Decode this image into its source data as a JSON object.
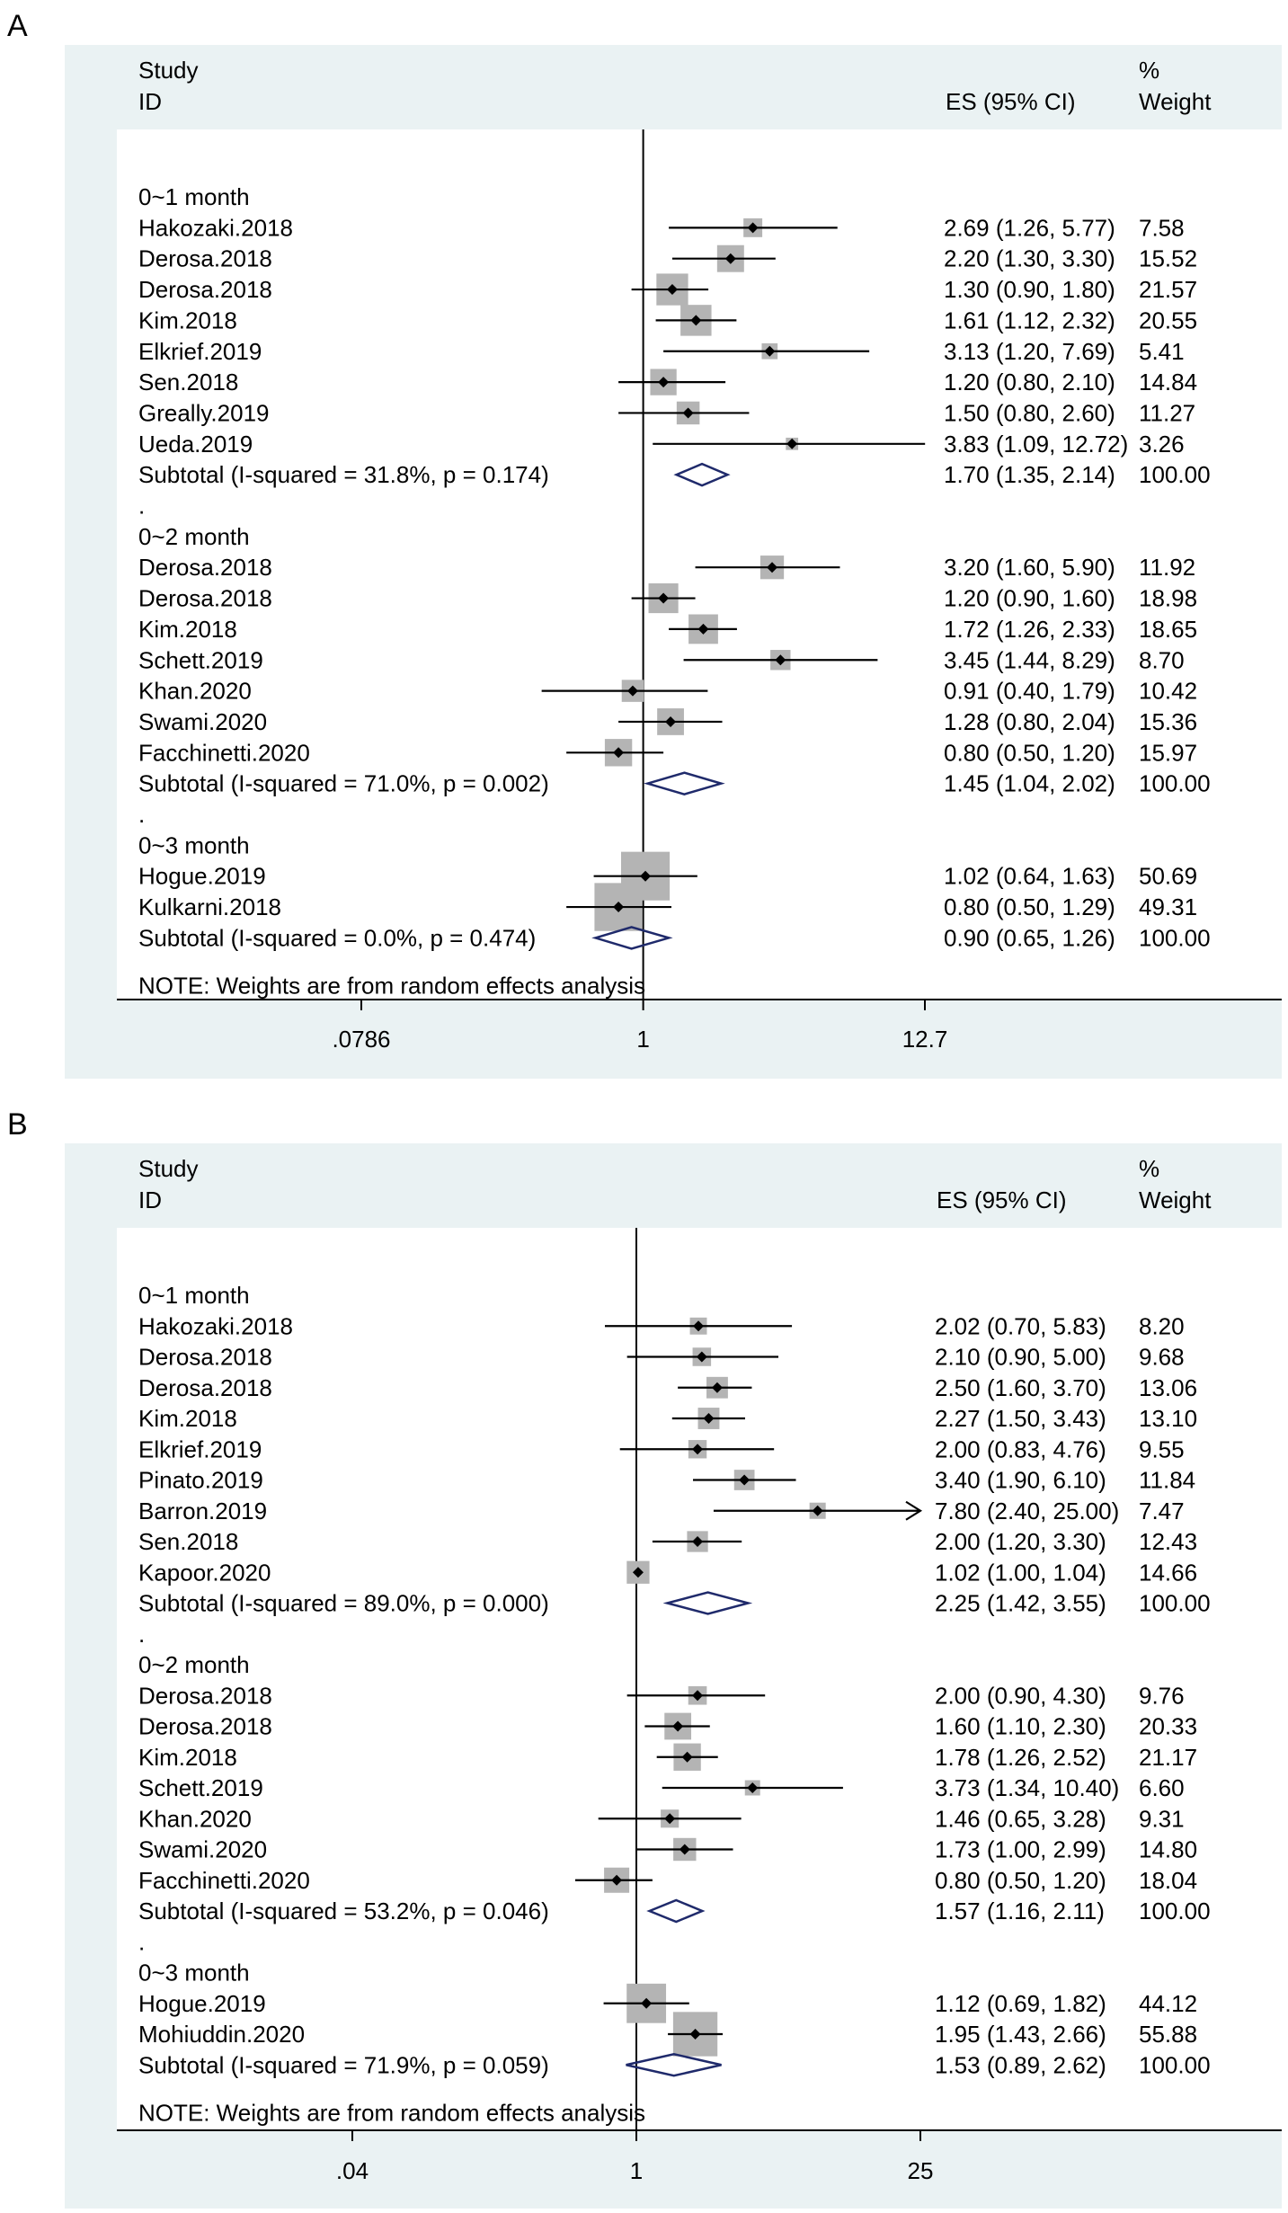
{
  "panels": [
    {
      "letter": "A",
      "header": {
        "study": "Study",
        "id": "ID",
        "es": "ES (95% CI)",
        "pct": "%",
        "weight": "Weight"
      },
      "note": "NOTE: Weights are from random effects analysis",
      "axis_ticks": [
        {
          "label": ".0786",
          "value": 0.0786
        },
        {
          "label": "1",
          "value": 1
        },
        {
          "label": "12.7",
          "value": 12.7
        }
      ]
    },
    {
      "letter": "B",
      "header": {
        "study": "Study",
        "id": "ID",
        "es": "ES (95% CI)",
        "pct": "%",
        "weight": "Weight"
      },
      "note": "NOTE: Weights are from random effects analysis",
      "axis_ticks": [
        {
          "label": ".04",
          "value": 0.04
        },
        {
          "label": "1",
          "value": 1
        },
        {
          "label": "25",
          "value": 25
        }
      ]
    }
  ],
  "chart_data": [
    {
      "type": "forest",
      "xscale": "log",
      "xlim": [
        0.0786,
        12.7
      ],
      "reference_line": 1,
      "rows": [
        {
          "kind": "group",
          "label": "0~1 month"
        },
        {
          "kind": "study",
          "label": "Hakozaki.2018",
          "es": 2.69,
          "lo": 1.26,
          "hi": 5.77,
          "es_text": "2.69 (1.26, 5.77)",
          "weight": 7.58,
          "weight_text": "7.58"
        },
        {
          "kind": "study",
          "label": "Derosa.2018",
          "es": 2.2,
          "lo": 1.3,
          "hi": 3.3,
          "es_text": "2.20 (1.30, 3.30)",
          "weight": 15.52,
          "weight_text": "15.52"
        },
        {
          "kind": "study",
          "label": "Derosa.2018",
          "es": 1.3,
          "lo": 0.9,
          "hi": 1.8,
          "es_text": "1.30 (0.90, 1.80)",
          "weight": 21.57,
          "weight_text": "21.57"
        },
        {
          "kind": "study",
          "label": "Kim.2018",
          "es": 1.61,
          "lo": 1.12,
          "hi": 2.32,
          "es_text": "1.61 (1.12, 2.32)",
          "weight": 20.55,
          "weight_text": "20.55"
        },
        {
          "kind": "study",
          "label": "Elkrief.2019",
          "es": 3.13,
          "lo": 1.2,
          "hi": 7.69,
          "es_text": "3.13 (1.20, 7.69)",
          "weight": 5.41,
          "weight_text": "5.41"
        },
        {
          "kind": "study",
          "label": "Sen.2018",
          "es": 1.2,
          "lo": 0.8,
          "hi": 2.1,
          "es_text": "1.20 (0.80, 2.10)",
          "weight": 14.84,
          "weight_text": "14.84"
        },
        {
          "kind": "study",
          "label": "Greally.2019",
          "es": 1.5,
          "lo": 0.8,
          "hi": 2.6,
          "es_text": "1.50 (0.80, 2.60)",
          "weight": 11.27,
          "weight_text": "11.27"
        },
        {
          "kind": "study",
          "label": "Ueda.2019",
          "es": 3.83,
          "lo": 1.09,
          "hi": 12.72,
          "es_text": "3.83 (1.09, 12.72)",
          "weight": 3.26,
          "weight_text": "3.26"
        },
        {
          "kind": "subtotal",
          "label": "Subtotal  (I-squared = 31.8%, p = 0.174)",
          "es": 1.7,
          "lo": 1.35,
          "hi": 2.14,
          "es_text": "1.70 (1.35, 2.14)",
          "weight_text": "100.00"
        },
        {
          "kind": "dot",
          "label": "."
        },
        {
          "kind": "group",
          "label": "0~2 month"
        },
        {
          "kind": "study",
          "label": "Derosa.2018",
          "es": 3.2,
          "lo": 1.6,
          "hi": 5.9,
          "es_text": "3.20 (1.60, 5.90)",
          "weight": 11.92,
          "weight_text": "11.92"
        },
        {
          "kind": "study",
          "label": "Derosa.2018",
          "es": 1.2,
          "lo": 0.9,
          "hi": 1.6,
          "es_text": "1.20 (0.90, 1.60)",
          "weight": 18.98,
          "weight_text": "18.98"
        },
        {
          "kind": "study",
          "label": "Kim.2018",
          "es": 1.72,
          "lo": 1.26,
          "hi": 2.33,
          "es_text": "1.72 (1.26, 2.33)",
          "weight": 18.65,
          "weight_text": "18.65"
        },
        {
          "kind": "study",
          "label": "Schett.2019",
          "es": 3.45,
          "lo": 1.44,
          "hi": 8.29,
          "es_text": "3.45 (1.44, 8.29)",
          "weight": 8.7,
          "weight_text": "8.70"
        },
        {
          "kind": "study",
          "label": "Khan.2020",
          "es": 0.91,
          "lo": 0.4,
          "hi": 1.79,
          "es_text": "0.91 (0.40, 1.79)",
          "weight": 10.42,
          "weight_text": "10.42"
        },
        {
          "kind": "study",
          "label": "Swami.2020",
          "es": 1.28,
          "lo": 0.8,
          "hi": 2.04,
          "es_text": "1.28 (0.80, 2.04)",
          "weight": 15.36,
          "weight_text": "15.36"
        },
        {
          "kind": "study",
          "label": "Facchinetti.2020",
          "es": 0.8,
          "lo": 0.5,
          "hi": 1.2,
          "es_text": "0.80 (0.50, 1.20)",
          "weight": 15.97,
          "weight_text": "15.97"
        },
        {
          "kind": "subtotal",
          "label": "Subtotal  (I-squared = 71.0%, p = 0.002)",
          "es": 1.45,
          "lo": 1.04,
          "hi": 2.02,
          "es_text": "1.45 (1.04, 2.02)",
          "weight_text": "100.00"
        },
        {
          "kind": "dot",
          "label": "."
        },
        {
          "kind": "group",
          "label": "0~3 month"
        },
        {
          "kind": "study",
          "label": "Hogue.2019",
          "es": 1.02,
          "lo": 0.64,
          "hi": 1.63,
          "es_text": "1.02 (0.64, 1.63)",
          "weight": 50.69,
          "weight_text": "50.69"
        },
        {
          "kind": "study",
          "label": "Kulkarni.2018",
          "es": 0.8,
          "lo": 0.5,
          "hi": 1.29,
          "es_text": "0.80 (0.50, 1.29)",
          "weight": 49.31,
          "weight_text": "49.31"
        },
        {
          "kind": "subtotal",
          "label": "Subtotal  (I-squared = 0.0%, p = 0.474)",
          "es": 0.9,
          "lo": 0.65,
          "hi": 1.26,
          "es_text": "0.90 (0.65, 1.26)",
          "weight_text": "100.00"
        }
      ]
    },
    {
      "type": "forest",
      "xscale": "log",
      "xlim": [
        0.04,
        25
      ],
      "reference_line": 1,
      "rows": [
        {
          "kind": "group",
          "label": "0~1 month"
        },
        {
          "kind": "study",
          "label": "Hakozaki.2018",
          "es": 2.02,
          "lo": 0.7,
          "hi": 5.83,
          "es_text": "2.02 (0.70, 5.83)",
          "weight": 8.2,
          "weight_text": "8.20"
        },
        {
          "kind": "study",
          "label": "Derosa.2018",
          "es": 2.1,
          "lo": 0.9,
          "hi": 5.0,
          "es_text": "2.10 (0.90, 5.00)",
          "weight": 9.68,
          "weight_text": "9.68"
        },
        {
          "kind": "study",
          "label": "Derosa.2018",
          "es": 2.5,
          "lo": 1.6,
          "hi": 3.7,
          "es_text": "2.50 (1.60, 3.70)",
          "weight": 13.06,
          "weight_text": "13.06"
        },
        {
          "kind": "study",
          "label": "Kim.2018",
          "es": 2.27,
          "lo": 1.5,
          "hi": 3.43,
          "es_text": "2.27 (1.50, 3.43)",
          "weight": 13.1,
          "weight_text": "13.10"
        },
        {
          "kind": "study",
          "label": "Elkrief.2019",
          "es": 2.0,
          "lo": 0.83,
          "hi": 4.76,
          "es_text": "2.00 (0.83, 4.76)",
          "weight": 9.55,
          "weight_text": "9.55"
        },
        {
          "kind": "study",
          "label": "Pinato.2019",
          "es": 3.4,
          "lo": 1.9,
          "hi": 6.1,
          "es_text": "3.40 (1.90, 6.10)",
          "weight": 11.84,
          "weight_text": "11.84"
        },
        {
          "kind": "study",
          "label": "Barron.2019",
          "es": 7.8,
          "lo": 2.4,
          "hi": 25.0,
          "es_text": "7.80 (2.40, 25.00)",
          "weight": 7.47,
          "weight_text": "7.47",
          "arrow_right": true
        },
        {
          "kind": "study",
          "label": "Sen.2018",
          "es": 2.0,
          "lo": 1.2,
          "hi": 3.3,
          "es_text": "2.00 (1.20, 3.30)",
          "weight": 12.43,
          "weight_text": "12.43"
        },
        {
          "kind": "study",
          "label": "Kapoor.2020",
          "es": 1.02,
          "lo": 1.0,
          "hi": 1.04,
          "es_text": "1.02 (1.00, 1.04)",
          "weight": 14.66,
          "weight_text": "14.66"
        },
        {
          "kind": "subtotal",
          "label": "Subtotal  (I-squared = 89.0%, p = 0.000)",
          "es": 2.25,
          "lo": 1.42,
          "hi": 3.55,
          "es_text": "2.25 (1.42, 3.55)",
          "weight_text": "100.00"
        },
        {
          "kind": "dot",
          "label": "."
        },
        {
          "kind": "group",
          "label": "0~2 month"
        },
        {
          "kind": "study",
          "label": "Derosa.2018",
          "es": 2.0,
          "lo": 0.9,
          "hi": 4.3,
          "es_text": "2.00 (0.90, 4.30)",
          "weight": 9.76,
          "weight_text": "9.76"
        },
        {
          "kind": "study",
          "label": "Derosa.2018",
          "es": 1.6,
          "lo": 1.1,
          "hi": 2.3,
          "es_text": "1.60 (1.10, 2.30)",
          "weight": 20.33,
          "weight_text": "20.33"
        },
        {
          "kind": "study",
          "label": "Kim.2018",
          "es": 1.78,
          "lo": 1.26,
          "hi": 2.52,
          "es_text": "1.78 (1.26, 2.52)",
          "weight": 21.17,
          "weight_text": "21.17"
        },
        {
          "kind": "study",
          "label": "Schett.2019",
          "es": 3.73,
          "lo": 1.34,
          "hi": 10.4,
          "es_text": "3.73 (1.34, 10.40)",
          "weight": 6.6,
          "weight_text": "6.60"
        },
        {
          "kind": "study",
          "label": "Khan.2020",
          "es": 1.46,
          "lo": 0.65,
          "hi": 3.28,
          "es_text": "1.46 (0.65, 3.28)",
          "weight": 9.31,
          "weight_text": "9.31"
        },
        {
          "kind": "study",
          "label": "Swami.2020",
          "es": 1.73,
          "lo": 1.0,
          "hi": 2.99,
          "es_text": "1.73 (1.00, 2.99)",
          "weight": 14.8,
          "weight_text": "14.80"
        },
        {
          "kind": "study",
          "label": "Facchinetti.2020",
          "es": 0.8,
          "lo": 0.5,
          "hi": 1.2,
          "es_text": "0.80 (0.50, 1.20)",
          "weight": 18.04,
          "weight_text": "18.04"
        },
        {
          "kind": "subtotal",
          "label": "Subtotal  (I-squared = 53.2%, p = 0.046)",
          "es": 1.57,
          "lo": 1.16,
          "hi": 2.11,
          "es_text": "1.57 (1.16, 2.11)",
          "weight_text": "100.00"
        },
        {
          "kind": "dot",
          "label": "."
        },
        {
          "kind": "group",
          "label": "0~3 month"
        },
        {
          "kind": "study",
          "label": "Hogue.2019",
          "es": 1.12,
          "lo": 0.69,
          "hi": 1.82,
          "es_text": "1.12 (0.69, 1.82)",
          "weight": 44.12,
          "weight_text": "44.12"
        },
        {
          "kind": "study",
          "label": "Mohiuddin.2020",
          "es": 1.95,
          "lo": 1.43,
          "hi": 2.66,
          "es_text": "1.95 (1.43, 2.66)",
          "weight": 55.88,
          "weight_text": "55.88"
        },
        {
          "kind": "subtotal",
          "label": "Subtotal  (I-squared = 71.9%, p = 0.059)",
          "es": 1.53,
          "lo": 0.89,
          "hi": 2.62,
          "es_text": "1.53 (0.89, 2.62)",
          "weight_text": "100.00"
        }
      ]
    }
  ]
}
